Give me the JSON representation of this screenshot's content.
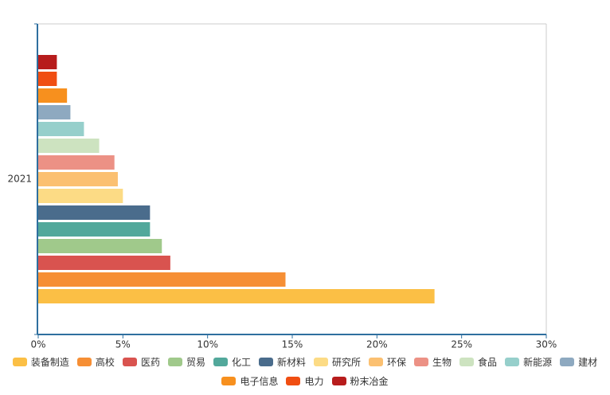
{
  "chart_data": {
    "type": "hbar",
    "categories": [
      "2021"
    ],
    "series": [
      {
        "name": "装备制造",
        "color": "#fbbf45",
        "values": [
          23.4
        ]
      },
      {
        "name": "高校",
        "color": "#f68f35",
        "values": [
          14.6
        ]
      },
      {
        "name": "医药",
        "color": "#d9534f",
        "values": [
          7.8
        ]
      },
      {
        "name": "贸易",
        "color": "#a0c98b",
        "values": [
          7.3
        ]
      },
      {
        "name": "化工",
        "color": "#52a89b",
        "values": [
          6.6
        ]
      },
      {
        "name": "新材料",
        "color": "#4a6c8c",
        "values": [
          6.6
        ]
      },
      {
        "name": "研究所",
        "color": "#fcdb85",
        "values": [
          5.0
        ]
      },
      {
        "name": "环保",
        "color": "#fbc071",
        "values": [
          4.7
        ]
      },
      {
        "name": "生物",
        "color": "#ec9185",
        "values": [
          4.5
        ]
      },
      {
        "name": "食品",
        "color": "#cde3c0",
        "values": [
          3.6
        ]
      },
      {
        "name": "新能源",
        "color": "#96cfcb",
        "values": [
          2.7
        ]
      },
      {
        "name": "建材",
        "color": "#8ea9c0",
        "values": [
          1.9
        ]
      },
      {
        "name": "电子信息",
        "color": "#f7901e",
        "values": [
          1.7
        ]
      },
      {
        "name": "电力",
        "color": "#f04e12",
        "values": [
          1.1
        ]
      },
      {
        "name": "粉末冶金",
        "color": "#b71c1c",
        "values": [
          1.1
        ]
      }
    ],
    "xlim": [
      0,
      30
    ],
    "xticks": [
      {
        "value": 0,
        "label": "0%"
      },
      {
        "value": 5,
        "label": "5%"
      },
      {
        "value": 10,
        "label": "10%"
      },
      {
        "value": 15,
        "label": "15%"
      },
      {
        "value": 20,
        "label": "20%"
      },
      {
        "value": 25,
        "label": "25%"
      },
      {
        "value": 30,
        "label": "30%"
      }
    ],
    "grid": false
  }
}
